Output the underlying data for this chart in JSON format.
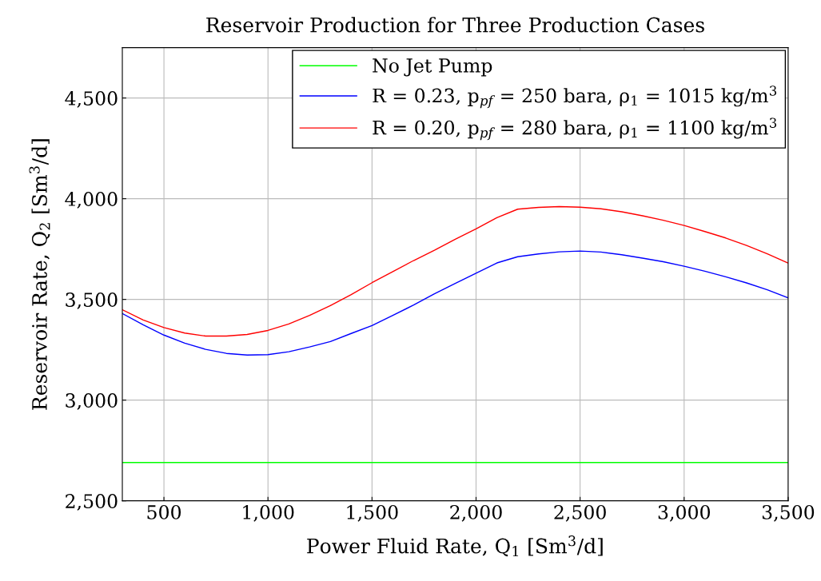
{
  "chart_data": {
    "type": "line",
    "title": "Reservoir Production for Three Production Cases",
    "xlabel": "Power Fluid Rate, Q$_{1}$ [Sm$^{3}$/d]",
    "ylabel": "Reservoir Rate, Q$_{2}$ [Sm$^{3}$/d]",
    "x": [
      300,
      400,
      500,
      600,
      700,
      800,
      900,
      1000,
      1100,
      1200,
      1300,
      1400,
      1500,
      1600,
      1700,
      1800,
      1900,
      2000,
      2100,
      2200,
      2300,
      2400,
      2500,
      2600,
      2700,
      2800,
      2900,
      3000,
      3100,
      3200,
      3300,
      3400,
      3500
    ],
    "series": [
      {
        "name": "No Jet Pump",
        "color": "#00ff00",
        "values": [
          2690,
          2690,
          2690,
          2690,
          2690,
          2690,
          2690,
          2690,
          2690,
          2690,
          2690,
          2690,
          2690,
          2690,
          2690,
          2690,
          2690,
          2690,
          2690,
          2690,
          2690,
          2690,
          2690,
          2690,
          2690,
          2690,
          2690,
          2690,
          2690,
          2690,
          2690,
          2690,
          2690
        ]
      },
      {
        "name": "R = 0.23, p$_{pf}$ = 250 bara, ρ$_{1}$ = 1015 kg/m$^{3}$",
        "color": "#0000ff",
        "values": [
          3430,
          3374,
          3323,
          3283,
          3252,
          3232,
          3224,
          3226,
          3240,
          3264,
          3291,
          3331,
          3370,
          3421,
          3472,
          3528,
          3579,
          3630,
          3681,
          3712,
          3726,
          3736,
          3740,
          3735,
          3722,
          3705,
          3687,
          3665,
          3640,
          3612,
          3582,
          3548,
          3508
        ]
      },
      {
        "name": "R = 0.20, p$_{pf}$ = 280 bara, ρ$_{1}$ = 1100 kg/m$^{3}$",
        "color": "#ff0000",
        "values": [
          3449,
          3398,
          3360,
          3333,
          3318,
          3318,
          3326,
          3346,
          3378,
          3421,
          3469,
          3524,
          3583,
          3638,
          3693,
          3744,
          3799,
          3850,
          3906,
          3948,
          3957,
          3961,
          3958,
          3950,
          3935,
          3915,
          3893,
          3867,
          3837,
          3805,
          3768,
          3726,
          3680
        ]
      }
    ],
    "xlim": [
      300,
      3500
    ],
    "ylim": [
      2500,
      4750
    ],
    "xticks": [
      500,
      {
        "value": 1000,
        "label": "1,000"
      },
      {
        "value": 1500,
        "label": "1,500"
      },
      {
        "value": 2000,
        "label": "2,000"
      },
      {
        "value": 2500,
        "label": "2,500"
      },
      {
        "value": 3000,
        "label": "3,000"
      },
      {
        "value": 3500,
        "label": "3,500"
      }
    ],
    "yticks": [
      {
        "value": 2500,
        "label": "2,500"
      },
      {
        "value": 3000,
        "label": "3,000"
      },
      {
        "value": 3500,
        "label": "3,500"
      },
      {
        "value": 4000,
        "label": "4,000"
      },
      {
        "value": 4500,
        "label": "4,500"
      }
    ],
    "grid": true,
    "legend": "top right"
  }
}
